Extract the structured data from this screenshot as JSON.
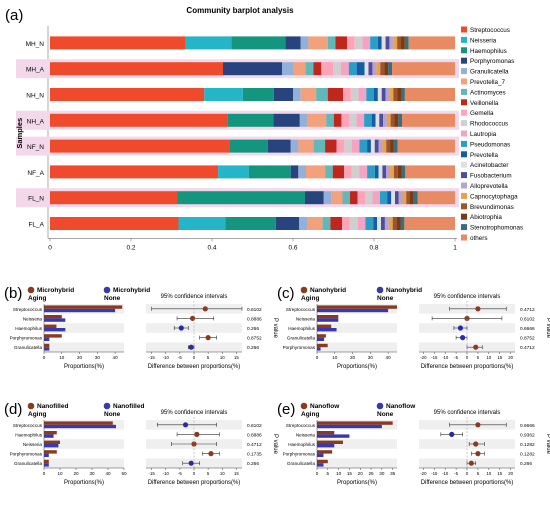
{
  "colors": {
    "aging_bar": "#8a3a1f",
    "none_bar": "#3838b0",
    "aging_dot_b": "#8a3a1f",
    "aging_dot_c": "#7a3a1a",
    "aging_dot_d": "#a02828",
    "none_dot": "#2a2aa8",
    "highlight": "#f3d8ec"
  },
  "chart_data": [
    {
      "type": "bar",
      "panel": "(a)",
      "title": "Community barplot analysis",
      "ylabel": "Samples",
      "xlim": [
        0,
        1
      ],
      "ticks": [
        "0",
        "0.2",
        "0.4",
        "0.6",
        "0.8",
        "1"
      ],
      "categories": [
        "MH_N",
        "MH_A",
        "NH_N",
        "NH_A",
        "NF_N",
        "NF_A",
        "FL_N",
        "FL_A"
      ],
      "highlighted": [
        "MH_A",
        "NH_A",
        "NF_N",
        "FL_N"
      ],
      "series": [
        {
          "name": "Streptococcus",
          "color": "#f04a2c",
          "values": [
            0.35,
            0.44,
            0.4,
            0.47,
            0.47,
            0.44,
            0.34,
            0.33
          ]
        },
        {
          "name": "Neisseria",
          "color": "#25b5c8",
          "values": [
            0.12,
            0.0,
            0.1,
            0.0,
            0.0,
            0.08,
            0.0,
            0.12
          ]
        },
        {
          "name": "Haemophilus",
          "color": "#14967e",
          "values": [
            0.14,
            0.0,
            0.08,
            0.12,
            0.1,
            0.11,
            0.34,
            0.13
          ]
        },
        {
          "name": "Porphyromonas",
          "color": "#27447e",
          "values": [
            0.04,
            0.15,
            0.05,
            0.07,
            0.06,
            0.02,
            0.05,
            0.06
          ]
        },
        {
          "name": "Granulicatella",
          "color": "#93b0d8",
          "values": [
            0.02,
            0.03,
            0.02,
            0.02,
            0.02,
            0.02,
            0.02,
            0.02
          ]
        },
        {
          "name": "Prevotella_7",
          "color": "#f3a07c",
          "values": [
            0.05,
            0.03,
            0.04,
            0.05,
            0.04,
            0.05,
            0.03,
            0.04
          ]
        },
        {
          "name": "Actinomyces",
          "color": "#61b8b8",
          "values": [
            0.02,
            0.02,
            0.03,
            0.02,
            0.03,
            0.02,
            0.02,
            0.02
          ]
        },
        {
          "name": "Veillonella",
          "color": "#c0271c",
          "values": [
            0.03,
            0.02,
            0.04,
            0.02,
            0.03,
            0.03,
            0.02,
            0.03
          ]
        },
        {
          "name": "Gemella",
          "color": "#ffa3b8",
          "values": [
            0.02,
            0.03,
            0.02,
            0.02,
            0.02,
            0.02,
            0.02,
            0.02
          ]
        },
        {
          "name": "Rhodococcus",
          "color": "#d0cfcf",
          "values": [
            0.02,
            0.02,
            0.02,
            0.02,
            0.02,
            0.02,
            0.02,
            0.02
          ]
        },
        {
          "name": "Lautropia",
          "color": "#f5a3c3",
          "values": [
            0.02,
            0.02,
            0.02,
            0.02,
            0.02,
            0.02,
            0.02,
            0.02
          ]
        },
        {
          "name": "Pseudomonas",
          "color": "#2a9dc9",
          "values": [
            0.02,
            0.02,
            0.02,
            0.02,
            0.02,
            0.02,
            0.02,
            0.02
          ]
        },
        {
          "name": "Prevotella",
          "color": "#125ea0",
          "values": [
            0.01,
            0.02,
            0.01,
            0.01,
            0.01,
            0.01,
            0.01,
            0.01
          ]
        },
        {
          "name": "Acinetobacter",
          "color": "#e0e0e0",
          "values": [
            0.01,
            0.01,
            0.01,
            0.01,
            0.01,
            0.01,
            0.01,
            0.01
          ]
        },
        {
          "name": "Fusobacterium",
          "color": "#4d4d9c",
          "values": [
            0.01,
            0.01,
            0.01,
            0.01,
            0.01,
            0.01,
            0.01,
            0.01
          ]
        },
        {
          "name": "Alloprevotella",
          "color": "#b5a3d0",
          "values": [
            0.01,
            0.01,
            0.01,
            0.01,
            0.01,
            0.01,
            0.01,
            0.01
          ]
        },
        {
          "name": "Capnocytophaga",
          "color": "#e8a34a",
          "values": [
            0.01,
            0.01,
            0.01,
            0.01,
            0.01,
            0.01,
            0.01,
            0.01
          ]
        },
        {
          "name": "Brevundimonas",
          "color": "#a0522d",
          "values": [
            0.01,
            0.01,
            0.01,
            0.01,
            0.01,
            0.01,
            0.01,
            0.01
          ]
        },
        {
          "name": "Abiotrophia",
          "color": "#7b3a10",
          "values": [
            0.01,
            0.01,
            0.01,
            0.01,
            0.01,
            0.01,
            0.01,
            0.01
          ]
        },
        {
          "name": "Stenotrophomonas",
          "color": "#3a6e7a",
          "values": [
            0.01,
            0.01,
            0.01,
            0.01,
            0.01,
            0.01,
            0.01,
            0.01
          ]
        },
        {
          "name": "others",
          "color": "#e88a62",
          "values": [
            0.12,
            0.16,
            0.13,
            0.14,
            0.15,
            0.13,
            0.1,
            0.13
          ]
        }
      ]
    },
    {
      "type": "bar",
      "panel": "(b)",
      "legend": [
        {
          "label": "Microhybrid Aging",
          "role": "aging"
        },
        {
          "label": "Microhybrid None",
          "role": "none"
        }
      ],
      "categories": [
        "Streptococcus",
        "Neisseria",
        "Haemophilus",
        "Porphyromonas",
        "Granulicatella"
      ],
      "aging": [
        44,
        10,
        7,
        10,
        3
      ],
      "none": [
        40,
        12,
        12,
        3,
        3
      ],
      "xlim": [
        0,
        45
      ],
      "xticks": [
        "0",
        "10",
        "20",
        "30",
        "40"
      ],
      "xlabel": "Proportions(%)",
      "ci_title": "95% confidence intervals",
      "ci_xlabel": "Difference between proportions(%)",
      "ci_xlim": [
        -17,
        17
      ],
      "ci_xticks": [
        "-15",
        "-10",
        "-5",
        "0",
        "5",
        "10",
        "15"
      ],
      "diff": [
        4,
        -0.5,
        -4.5,
        5,
        -1
      ],
      "ci_low": [
        -15,
        -6,
        -7,
        2,
        -2
      ],
      "ci_high": [
        17,
        7,
        -2,
        8,
        0
      ],
      "dot_role": [
        "aging",
        "aging",
        "none",
        "aging",
        "none"
      ],
      "pvalues": [
        "0.6102",
        "0.8886",
        "0.266",
        "0.8752",
        "0.266"
      ],
      "pvalue_label": "P value"
    },
    {
      "type": "bar",
      "panel": "(c)",
      "legend": [
        {
          "label": "Nanohybrid Aging",
          "role": "aging"
        },
        {
          "label": "Nanohybrid None",
          "role": "none"
        }
      ],
      "categories": [
        "Streptococcus",
        "Neisseria",
        "Haemophilus",
        "Granulicatella",
        "Porphyromonas"
      ],
      "aging": [
        45,
        12,
        8,
        5,
        6
      ],
      "none": [
        40,
        12,
        11,
        4,
        2
      ],
      "xlim": [
        0,
        45
      ],
      "xticks": [
        "0",
        "10",
        "20",
        "30",
        "40"
      ],
      "xlabel": "Proportions(%)",
      "ci_title": "95% confidence intervals",
      "ci_xlabel": "Difference between proportions(%)",
      "ci_xlim": [
        -22,
        22
      ],
      "ci_xticks": [
        "-20",
        "-15",
        "-10",
        "-5",
        "0",
        "5",
        "10",
        "15",
        "20"
      ],
      "diff": [
        5,
        0,
        -3,
        -2,
        4
      ],
      "ci_low": [
        -8,
        -16,
        -6,
        -5,
        0
      ],
      "ci_high": [
        18,
        16,
        0,
        0,
        7
      ],
      "dot_role": [
        "aging",
        "aging",
        "none",
        "none",
        "aging"
      ],
      "pvalues": [
        "0.4712",
        "0.6102",
        "0.6666",
        "0.8752",
        "0.4712"
      ],
      "pvalue_label": "P value"
    },
    {
      "type": "bar",
      "panel": "(d)",
      "legend": [
        {
          "label": "Nanofilled Aging",
          "role": "aging"
        },
        {
          "label": "Nanofilled None",
          "role": "none"
        }
      ],
      "categories": [
        "Streptococcus",
        "Haemophilus",
        "Neisseria",
        "Porphyromonas",
        "Granulicatella"
      ],
      "aging": [
        43,
        8,
        10,
        8,
        3
      ],
      "none": [
        45,
        6,
        9,
        3,
        3
      ],
      "xlim": [
        0,
        50
      ],
      "xticks": [
        "0",
        "10",
        "20",
        "30",
        "40",
        "50"
      ],
      "xlabel": "Proportions(%)",
      "ci_title": "95% confidence intervals",
      "ci_xlabel": "Difference between proportions(%)",
      "ci_xlim": [
        -17,
        17
      ],
      "ci_xticks": [
        "-15",
        "-10",
        "-5",
        "0",
        "5",
        "10",
        "15"
      ],
      "diff": [
        -3,
        1,
        0,
        6,
        -1
      ],
      "ci_low": [
        -13,
        -6,
        -8,
        3,
        -4
      ],
      "ci_high": [
        8,
        9,
        8,
        9,
        2
      ],
      "dot_role": [
        "none",
        "aging",
        "aging",
        "aging",
        "none"
      ],
      "pvalues": [
        "0.6102",
        "0.8886",
        "0.4712",
        "0.1735",
        "0.266"
      ],
      "pvalue_label": "P value"
    },
    {
      "type": "bar",
      "panel": "(e)",
      "legend": [
        {
          "label": "Nanoflow Aging",
          "role": "aging"
        },
        {
          "label": "Nanoflow None",
          "role": "none"
        }
      ],
      "categories": [
        "Streptococcus",
        "Neisseria",
        "Haemophilus",
        "Porphyromonas",
        "Granulicatella"
      ],
      "aging": [
        35,
        8,
        12,
        7,
        5
      ],
      "none": [
        30,
        15,
        8,
        3,
        3
      ],
      "xlim": [
        0,
        37
      ],
      "xticks": [
        "0",
        "5",
        "10",
        "15",
        "20",
        "25",
        "30",
        "35"
      ],
      "xlabel": "Proportions(%)",
      "ci_title": "95% confidence intervals",
      "ci_xlabel": "Difference between proportions(%)",
      "ci_xlim": [
        -22,
        22
      ],
      "ci_xticks": [
        "-20",
        "-15",
        "-10",
        "-5",
        "0",
        "5",
        "10",
        "15",
        "20"
      ],
      "diff": [
        5,
        -7,
        4,
        5,
        2
      ],
      "ci_low": [
        -8,
        -12,
        1,
        2,
        0
      ],
      "ci_high": [
        18,
        -2,
        8,
        8,
        4
      ],
      "dot_role": [
        "aging",
        "none",
        "aging",
        "aging",
        "aging"
      ],
      "pvalues": [
        "0.6666",
        "0.9362",
        "0.1282",
        "0.1282",
        "0.266"
      ],
      "pvalue_label": "P value"
    }
  ]
}
